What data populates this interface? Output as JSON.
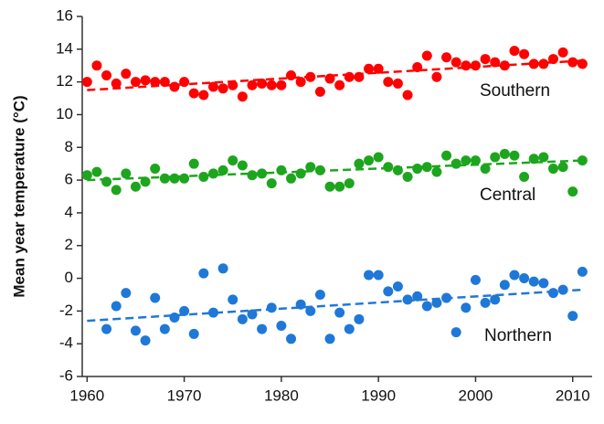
{
  "chart_data": {
    "type": "scatter",
    "y_label": "Mean year temperature (°C)",
    "xlim": [
      1959.5,
      2012
    ],
    "xticks": [
      1960,
      1970,
      1980,
      1990,
      2000,
      2010
    ],
    "ylim": [
      -6,
      16
    ],
    "yticks": [
      -6,
      -4,
      -2,
      0,
      2,
      4,
      6,
      8,
      10,
      12,
      14,
      16
    ],
    "trend_x": [
      1960,
      2011
    ],
    "x": [
      1960,
      1961,
      1962,
      1963,
      1964,
      1965,
      1966,
      1967,
      1968,
      1969,
      1970,
      1971,
      1972,
      1973,
      1974,
      1975,
      1976,
      1977,
      1978,
      1979,
      1980,
      1981,
      1982,
      1983,
      1984,
      1985,
      1986,
      1987,
      1988,
      1989,
      1990,
      1991,
      1992,
      1993,
      1994,
      1995,
      1996,
      1997,
      1998,
      1999,
      2000,
      2001,
      2002,
      2003,
      2004,
      2005,
      2006,
      2007,
      2008,
      2009,
      2010,
      2011
    ],
    "series": [
      {
        "name": "Southern",
        "color": "#ff0000",
        "trend": [
          11.5,
          13.3
        ],
        "values": [
          12.0,
          13.0,
          12.4,
          11.9,
          12.5,
          12.0,
          12.1,
          12.0,
          12.0,
          11.7,
          12.0,
          11.3,
          11.2,
          11.7,
          11.6,
          11.8,
          11.1,
          11.8,
          11.9,
          11.8,
          11.8,
          12.4,
          12.0,
          12.3,
          11.4,
          12.2,
          11.8,
          12.3,
          12.3,
          12.8,
          12.8,
          12.0,
          11.9,
          11.2,
          12.9,
          13.6,
          12.3,
          13.5,
          13.2,
          13.0,
          13.0,
          13.4,
          13.2,
          13.0,
          13.9,
          13.7,
          13.1,
          13.1,
          13.4,
          13.8,
          13.2,
          13.1
        ]
      },
      {
        "name": "Central",
        "color": "#1ea51e",
        "trend": [
          6.0,
          7.2
        ],
        "values": [
          6.3,
          6.5,
          5.9,
          5.4,
          6.4,
          5.6,
          5.9,
          6.7,
          6.1,
          6.1,
          6.1,
          7.0,
          6.2,
          6.4,
          6.6,
          7.2,
          6.9,
          6.3,
          6.4,
          5.8,
          6.6,
          6.1,
          6.4,
          6.8,
          6.6,
          5.6,
          5.6,
          5.8,
          7.0,
          7.2,
          7.4,
          6.8,
          6.6,
          6.2,
          6.7,
          6.8,
          6.5,
          7.5,
          7.0,
          7.2,
          7.2,
          6.7,
          7.4,
          7.6,
          7.5,
          6.2,
          7.3,
          7.4,
          6.7,
          6.8,
          5.3,
          7.2
        ]
      },
      {
        "name": "Northern",
        "color": "#1f78d8",
        "trend": [
          -2.6,
          -0.7
        ],
        "values": [
          null,
          null,
          -3.1,
          -1.7,
          -0.9,
          -3.2,
          -3.8,
          -1.2,
          -3.1,
          -2.4,
          -2.0,
          -3.4,
          0.3,
          -2.1,
          0.6,
          -1.3,
          -2.5,
          -2.2,
          -3.1,
          -1.8,
          -2.9,
          -3.7,
          -1.6,
          -2.0,
          -1.0,
          -3.7,
          -2.1,
          -3.1,
          -2.5,
          0.2,
          0.2,
          -0.8,
          -0.5,
          -1.3,
          -1.1,
          -1.7,
          -1.5,
          -1.2,
          -3.3,
          -1.8,
          -0.1,
          -1.5,
          -1.3,
          -0.4,
          0.2,
          0.0,
          -0.2,
          -0.3,
          -0.9,
          -0.7,
          -2.3,
          0.4
        ]
      }
    ]
  }
}
